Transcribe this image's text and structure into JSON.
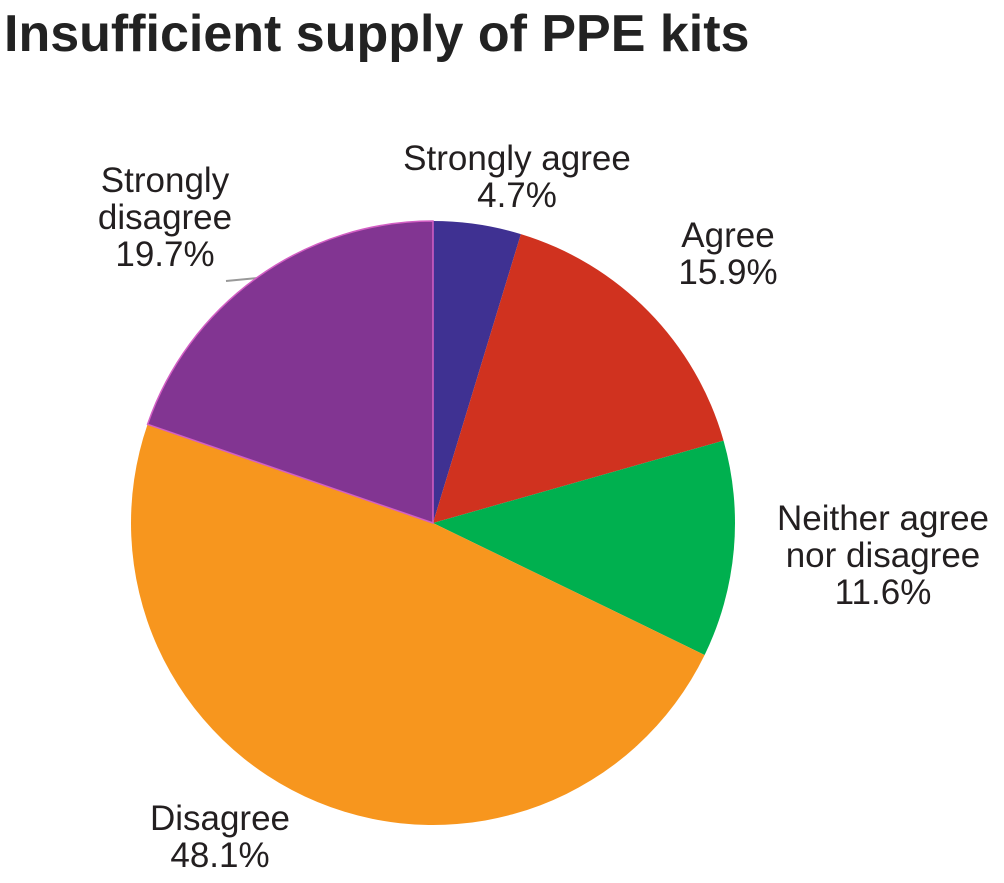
{
  "chart_data": {
    "type": "pie",
    "title": "Insufficient supply of PPE kits",
    "categories": [
      "Strongly agree",
      "Agree",
      "Neither agree nor disagree",
      "Disagree",
      "Strongly disagree"
    ],
    "values": [
      4.7,
      15.9,
      11.6,
      48.1,
      19.7
    ],
    "value_labels": [
      "4.7%",
      "15.9%",
      "11.6%",
      "48.1%",
      "19.7%"
    ],
    "colors": [
      "#3f3192",
      "#d0321f",
      "#00b04f",
      "#f7961e",
      "#823592"
    ]
  }
}
